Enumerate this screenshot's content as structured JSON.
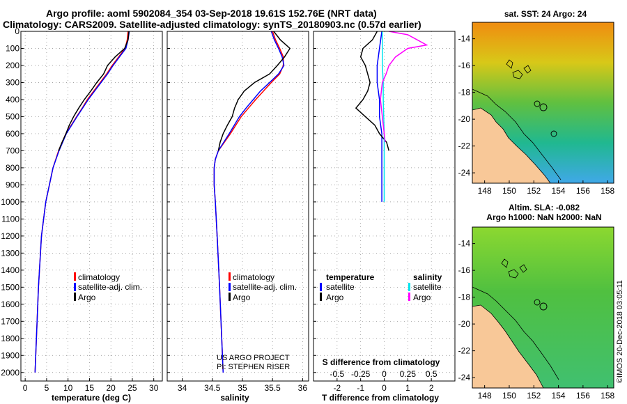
{
  "title": {
    "line1": "Argo profile: aoml 5902084_354 03-Sep-2018 19.61S 152.76E (NRT data)",
    "line2": "Climatology: CARS2009. Satellite-adjusted climatology: synTS_20180903.nc (0.57d earlier)"
  },
  "depth_ticks": [
    "0",
    "100",
    "200",
    "300",
    "400",
    "500",
    "600",
    "700",
    "800",
    "900",
    "1000",
    "1100",
    "1200",
    "1300",
    "1400",
    "1500",
    "1600",
    "1700",
    "1800",
    "1900",
    "2000"
  ],
  "colors": {
    "climatology": "#ff0000",
    "satellite": "#0000ff",
    "argo": "#000000",
    "salinity_satellite": "#00e5ee",
    "salinity_argo": "#ff00ff",
    "land": "#f8c898"
  },
  "chart_data": [
    {
      "type": "line",
      "title": "",
      "xlabel": "temperature (deg C)",
      "ylabel": "",
      "xlim": [
        -1,
        32
      ],
      "ylim": [
        2050,
        0
      ],
      "x_ticks": [
        "0",
        "5",
        "10",
        "15",
        "20",
        "25",
        "30"
      ],
      "legend": [
        "climatology",
        "satellite-adj. clim.",
        "Argo"
      ],
      "series": [
        {
          "name": "climatology",
          "depth": [
            0,
            50,
            100,
            150,
            200,
            250,
            300,
            350,
            400,
            450,
            500,
            600,
            700,
            800,
            1000,
            1200,
            1500,
            2000
          ],
          "values": [
            24,
            23.8,
            23.3,
            21.8,
            20.3,
            19,
            17.5,
            16,
            14.5,
            13.3,
            12,
            9.5,
            7.8,
            6.5,
            4.8,
            3.8,
            3.1,
            2.3
          ]
        },
        {
          "name": "satellite-adj. clim.",
          "depth": [
            0,
            50,
            100,
            150,
            200,
            250,
            300,
            350,
            400,
            450,
            500,
            600,
            700,
            800,
            1000,
            1200,
            1500,
            2000
          ],
          "values": [
            24.3,
            24,
            23.5,
            22,
            20.5,
            19.2,
            17.7,
            16.2,
            14.7,
            13.4,
            12.1,
            9.6,
            7.9,
            6.5,
            4.8,
            3.8,
            3.1,
            2.3
          ]
        },
        {
          "name": "Argo",
          "depth": [
            0,
            50,
            100,
            150,
            200,
            250,
            300,
            350,
            400,
            450,
            500,
            550,
            600,
            650,
            700
          ],
          "values": [
            24.2,
            24,
            23.2,
            21,
            19.2,
            18.3,
            16.7,
            15.3,
            13.8,
            12.5,
            11.3,
            10.3,
            9.5,
            8.6,
            7.8
          ]
        }
      ]
    },
    {
      "type": "line",
      "title": "",
      "xlabel": "salinity",
      "ylabel": "",
      "xlim": [
        33.75,
        36.1
      ],
      "ylim": [
        2050,
        0
      ],
      "x_ticks": [
        "34",
        "34.5",
        "35",
        "35.5",
        "36"
      ],
      "legend": [
        "climatology",
        "satellite-adj. clim.",
        "Argo"
      ],
      "series": [
        {
          "name": "climatology",
          "depth": [
            0,
            50,
            100,
            150,
            200,
            250,
            300,
            350,
            400,
            450,
            500,
            600,
            700,
            750,
            800,
            900,
            1000,
            1200,
            1500,
            2000
          ],
          "values": [
            35.5,
            35.55,
            35.62,
            35.68,
            35.68,
            35.62,
            35.48,
            35.35,
            35.22,
            35.1,
            34.98,
            34.8,
            34.6,
            34.55,
            34.53,
            34.53,
            34.55,
            34.58,
            34.62,
            34.68
          ]
        },
        {
          "name": "satellite-adj. clim.",
          "depth": [
            0,
            50,
            100,
            150,
            200,
            250,
            300,
            350,
            400,
            450,
            500,
            600,
            700,
            750,
            800,
            900,
            1000,
            1200,
            1500,
            2000
          ],
          "values": [
            35.48,
            35.53,
            35.6,
            35.66,
            35.69,
            35.6,
            35.45,
            35.3,
            35.18,
            35.06,
            34.95,
            34.78,
            34.6,
            34.55,
            34.53,
            34.53,
            34.55,
            34.58,
            34.62,
            34.68
          ]
        },
        {
          "name": "Argo",
          "depth": [
            0,
            50,
            100,
            150,
            200,
            250,
            300,
            350,
            400,
            450,
            500,
            550,
            600,
            650,
            700
          ],
          "values": [
            35.52,
            35.63,
            35.79,
            35.7,
            35.58,
            35.45,
            35.2,
            35.03,
            34.93,
            34.87,
            34.83,
            34.75,
            34.68,
            34.63,
            34.6
          ]
        }
      ]
    },
    {
      "type": "line",
      "title": "",
      "xlabel": "T difference from climatology",
      "xlabel2": "S difference from climatology",
      "ylabel": "",
      "xlim": [
        -3,
        3
      ],
      "ylim": [
        2050,
        0
      ],
      "x_ticks": [
        "-2",
        "-1",
        "0",
        "1",
        "2"
      ],
      "x_ticks_salinity": [
        "-0.5",
        "-0.25",
        "0",
        "0.25",
        "0.5"
      ],
      "legend_temperature_title": "temperature",
      "legend_salinity_title": "salinity",
      "legend": [
        "satellite",
        "Argo",
        "satellite",
        "Argo"
      ],
      "series": [
        {
          "name": "temperature satellite",
          "depth": [
            0,
            100,
            200,
            300,
            400,
            500,
            600,
            700,
            800,
            900,
            1000
          ],
          "values": [
            -0.1,
            -0.2,
            -0.3,
            -0.3,
            -0.2,
            -0.2,
            -0.1,
            -0.1,
            -0.1,
            -0.1,
            -0.1
          ]
        },
        {
          "name": "temperature Argo",
          "depth": [
            0,
            50,
            100,
            150,
            200,
            250,
            300,
            350,
            400,
            450,
            500,
            550,
            600,
            650,
            700
          ],
          "values": [
            -0.3,
            -0.5,
            -0.9,
            -1.0,
            -0.8,
            -0.7,
            -0.6,
            -0.7,
            -0.9,
            -1.2,
            -0.8,
            -0.4,
            -0.2,
            0.1,
            0.2
          ]
        },
        {
          "name": "salinity satellite",
          "depth": [
            0,
            100,
            200,
            300,
            400,
            500,
            600,
            700,
            800,
            900,
            1000
          ],
          "values": [
            -0.02,
            -0.02,
            -0.02,
            -0.01,
            -0.01,
            -0.005,
            0,
            0,
            0,
            0,
            0
          ]
        },
        {
          "name": "salinity Argo",
          "depth": [
            0,
            20,
            50,
            80,
            100,
            150,
            200,
            250,
            300,
            350,
            400,
            500,
            600,
            650
          ],
          "values": [
            0.05,
            0.25,
            0.35,
            0.45,
            0.25,
            0.12,
            0.05,
            0.02,
            -0.02,
            -0.03,
            -0.04,
            -0.02,
            0,
            0.01
          ]
        }
      ]
    }
  ],
  "credits": {
    "line1": "US ARGO PROJECT",
    "line2": "PI: STEPHEN RISER"
  },
  "maps": [
    {
      "title": "sat. SST: 24 Argo: 24",
      "subtitle": "",
      "lat_ticks": [
        "-14",
        "-16",
        "-18",
        "-20",
        "-22",
        "-24"
      ],
      "lon_ticks": [
        "148",
        "150",
        "152",
        "154",
        "156",
        "158"
      ],
      "argo_position": {
        "lat": -19.61,
        "lon": 152.76
      }
    },
    {
      "title": "Altim. SLA: -0.082",
      "subtitle": "Argo h1000: NaN h2000: NaN",
      "lat_ticks": [
        "-14",
        "-16",
        "-18",
        "-20",
        "-22",
        "-24"
      ],
      "lon_ticks": [
        "148",
        "150",
        "152",
        "154",
        "156",
        "158"
      ],
      "argo_position": {
        "lat": -19.61,
        "lon": 152.76
      }
    }
  ],
  "watermark": "©IMOS 20-Dec-2018 03:05:11"
}
